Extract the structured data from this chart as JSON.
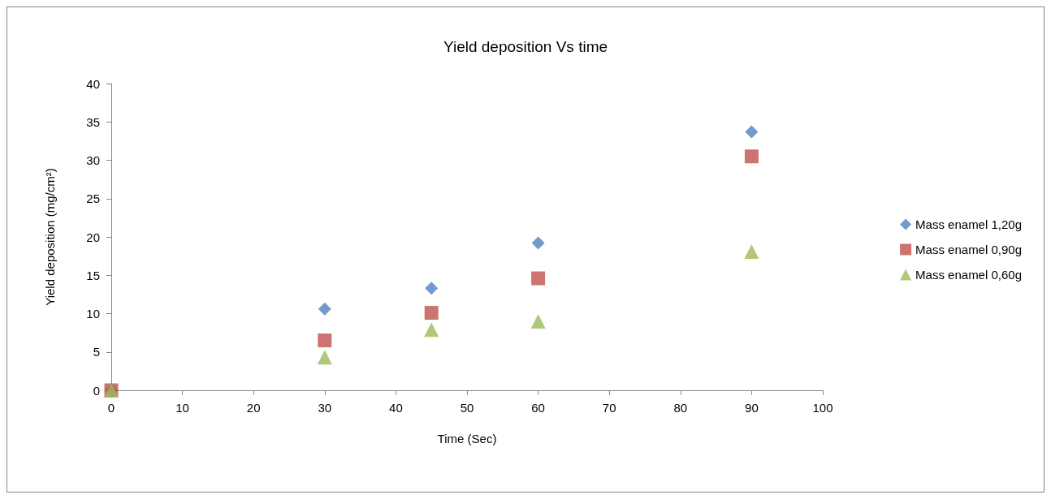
{
  "chart_data": {
    "type": "scatter",
    "title": "Yield deposition Vs time",
    "xlabel": "Time (Sec)",
    "ylabel": "Yield deposition (mg/cm²)",
    "x": [
      0,
      30,
      45,
      60,
      90
    ],
    "series": [
      {
        "name": "Mass enamel 1,20g",
        "color": "#4f81bd",
        "marker": "diamond",
        "values": [
          0,
          10.6,
          13.3,
          19.2,
          33.7
        ]
      },
      {
        "name": "Mass enamel 0,90g",
        "color": "#c0504d",
        "marker": "square",
        "values": [
          0,
          6.5,
          10.1,
          14.6,
          30.5
        ]
      },
      {
        "name": "Mass enamel 0,60g",
        "color": "#9bbb59",
        "marker": "triangle",
        "values": [
          0,
          4.3,
          7.9,
          9.0,
          18.1
        ]
      }
    ],
    "xlim": [
      0,
      100
    ],
    "xticks": [
      0,
      10,
      20,
      30,
      40,
      50,
      60,
      70,
      80,
      90,
      100
    ],
    "ylim": [
      0,
      40
    ],
    "yticks": [
      0,
      5,
      10,
      15,
      20,
      25,
      30,
      35,
      40
    ],
    "grid": false,
    "legend": "right"
  }
}
